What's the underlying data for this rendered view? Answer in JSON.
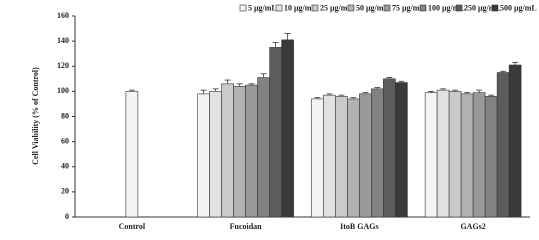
{
  "chart_data": {
    "type": "bar",
    "y_label": "Cell Viability  (% of Control)",
    "categories": [
      "Control",
      "Fucoidan",
      "ItoB GAGs",
      "GAGs2"
    ],
    "series": [
      {
        "name": "5 μg/mL",
        "color": "#f4f4f4",
        "values": [
          100,
          98,
          94,
          99
        ],
        "errors": [
          1,
          3,
          1,
          1
        ]
      },
      {
        "name": "10 μg/mL",
        "color": "#e2e2e2",
        "values": [
          null,
          100,
          97,
          101
        ],
        "errors": [
          null,
          2,
          1,
          1
        ]
      },
      {
        "name": "25 μg/mL",
        "color": "#cacaca",
        "values": [
          null,
          106,
          96,
          100
        ],
        "errors": [
          null,
          3,
          1,
          1
        ]
      },
      {
        "name": "50 μg/mL",
        "color": "#b2b2b2",
        "values": [
          null,
          104,
          94,
          98
        ],
        "errors": [
          null,
          2,
          1,
          1
        ]
      },
      {
        "name": "75 μg/mL",
        "color": "#9a9a9a",
        "values": [
          null,
          105,
          98,
          99
        ],
        "errors": [
          null,
          1,
          1,
          2
        ]
      },
      {
        "name": "100 μg/mL",
        "color": "#828282",
        "values": [
          null,
          111,
          102,
          96
        ],
        "errors": [
          null,
          3,
          1,
          1
        ]
      },
      {
        "name": "250 μg/mL",
        "color": "#5c5c5c",
        "values": [
          null,
          135,
          110,
          115
        ],
        "errors": [
          null,
          4,
          1,
          1
        ]
      },
      {
        "name": "500 μg/mL",
        "color": "#3a3a3a",
        "values": [
          null,
          141,
          107,
          121
        ],
        "errors": [
          null,
          5,
          1,
          2
        ]
      }
    ],
    "ylim": [
      0,
      160
    ],
    "yticks": [
      0,
      20,
      40,
      60,
      80,
      100,
      120,
      140,
      160
    ]
  }
}
